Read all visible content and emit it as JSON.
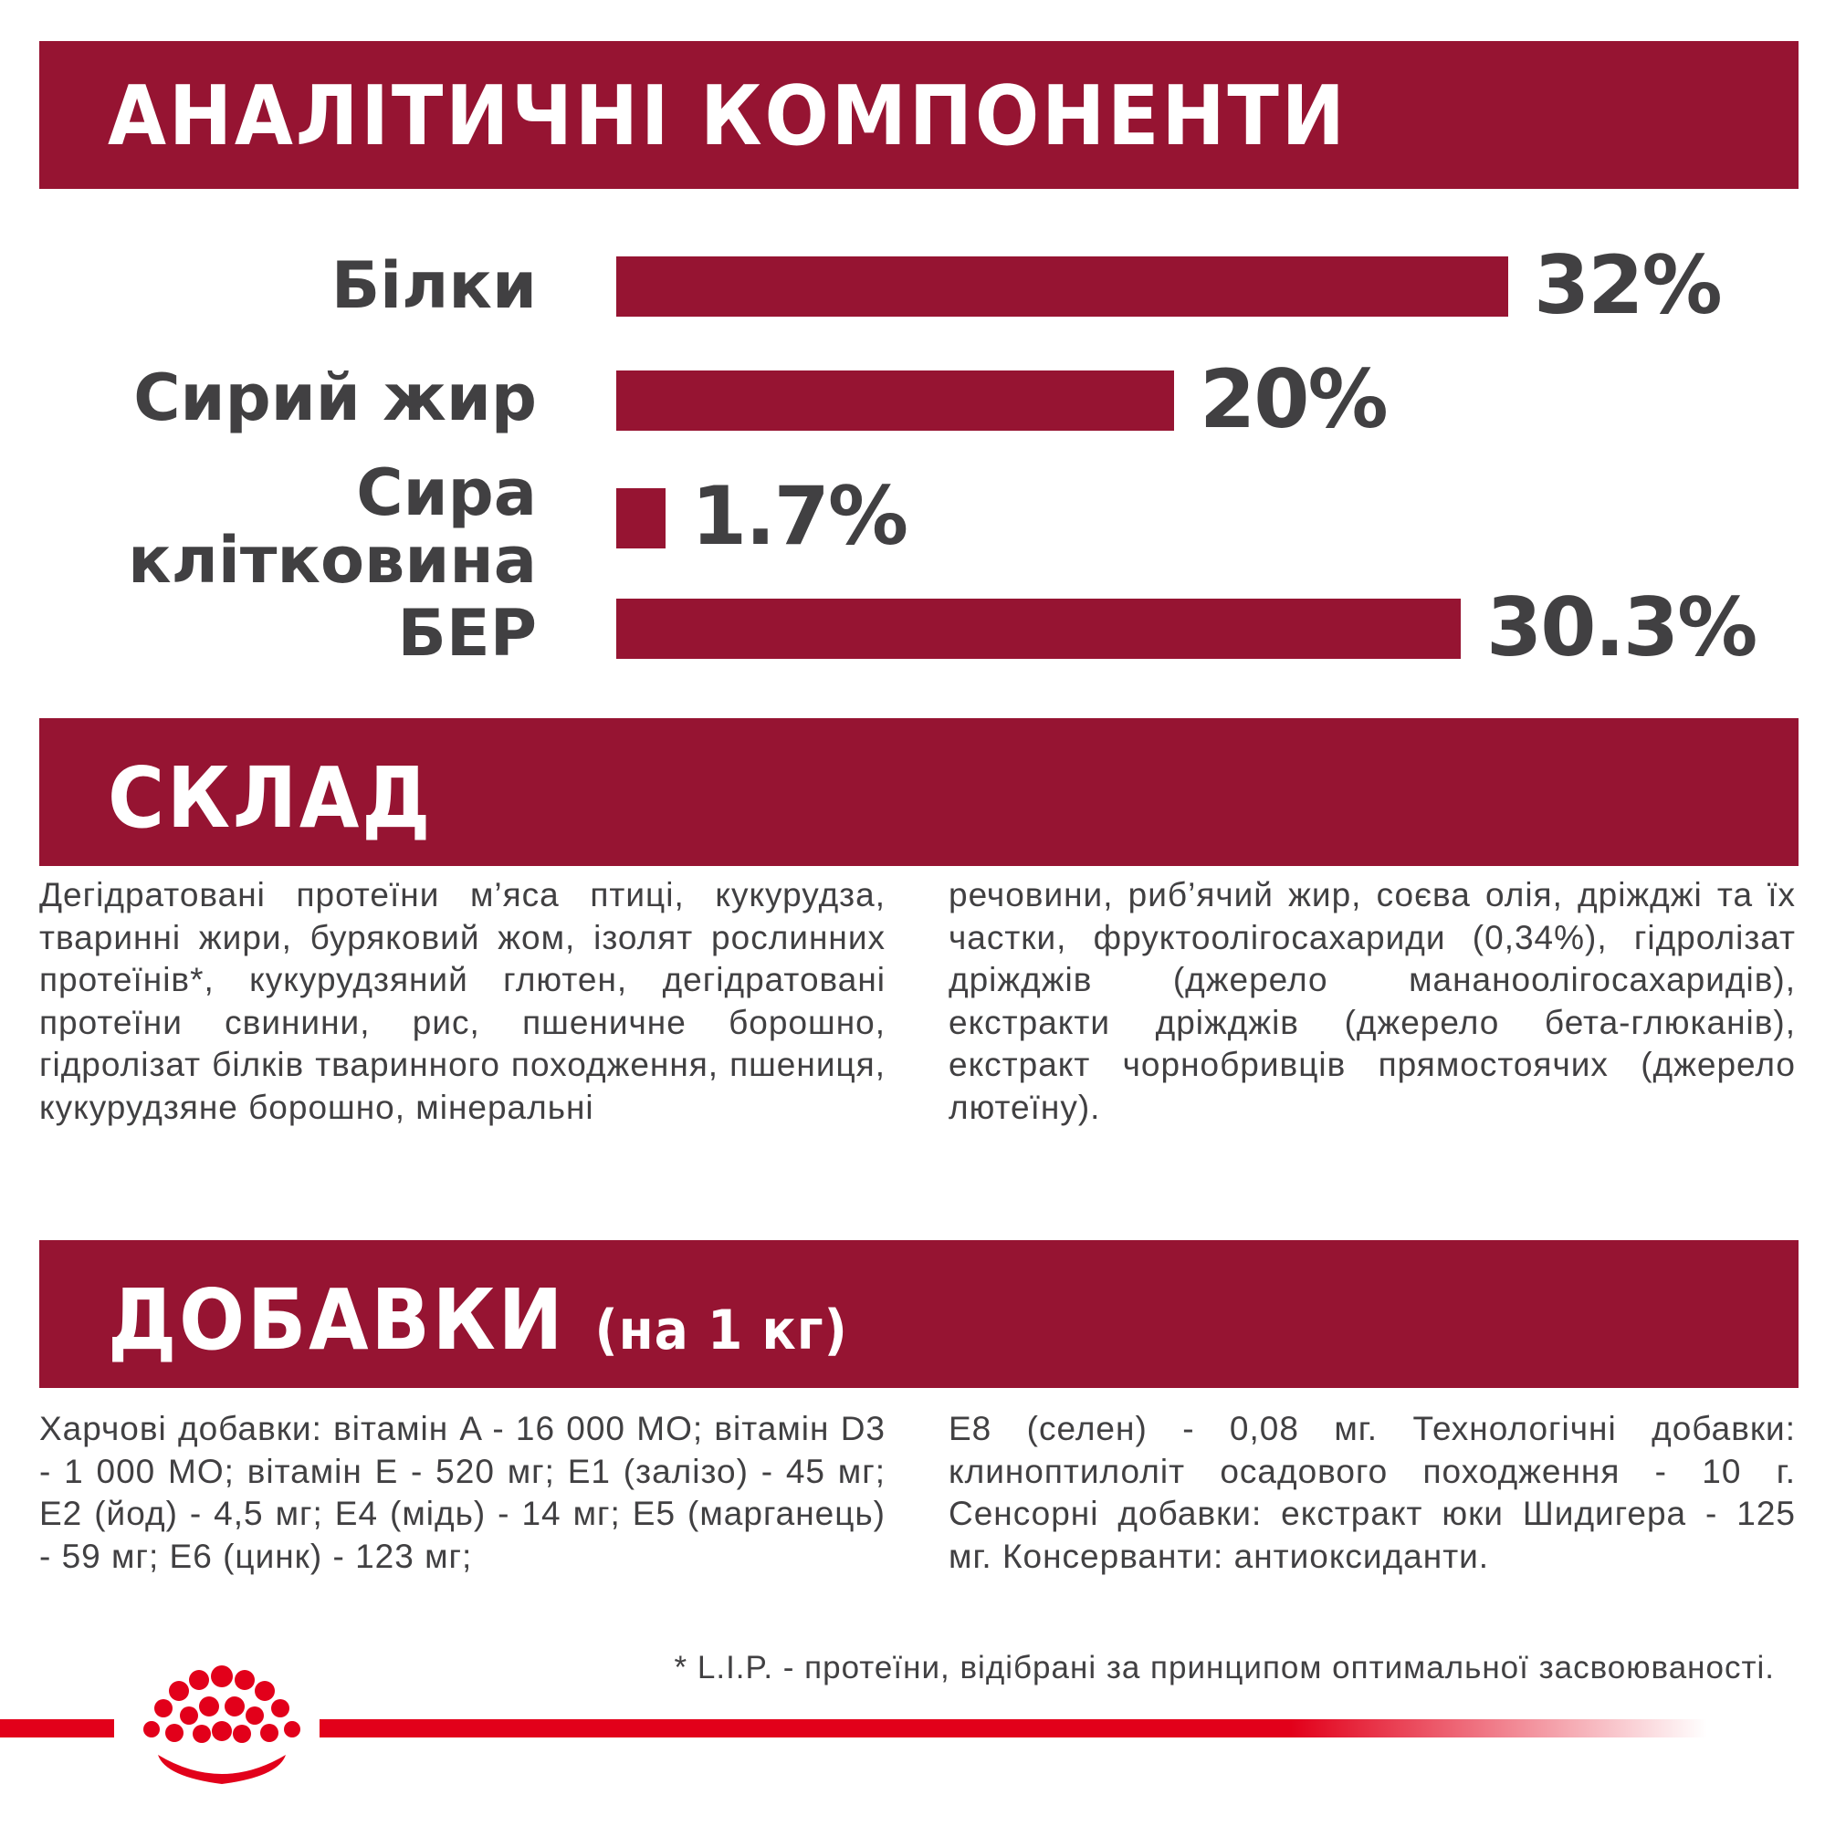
{
  "sections": {
    "analytics_title": "АНАЛІТИЧНІ КОМПОНЕНТИ",
    "composition_title": "СКЛАД",
    "additives_title": "ДОБАВКИ",
    "additives_subtitle": "(на 1 кг)"
  },
  "nutrients": [
    {
      "label": "Білки",
      "value_text": "32%",
      "percent": 32
    },
    {
      "label": "Сирий жир",
      "value_text": "20%",
      "percent": 20
    },
    {
      "label_line1": "Сира",
      "label_line2": "клітковина",
      "value_text": "1.7%",
      "percent": 1.7
    },
    {
      "label": "БЕР",
      "value_text": "30.3%",
      "percent": 30.3
    }
  ],
  "composition": {
    "col1": "Дегідратовані протеїни м’яса птиці, кукурудза, тваринні жири, буряковий жом, ізолят рослин­них протеїнів*, кукурудзяний глютен, дегідрато­вані протеїни свинини, рис, пшеничне борош­но, гідролізат білків тваринного походження, пшениця, кукурудзяне борошно, мінеральні",
    "col2": "речовини, риб’ячий жир, соєва олія, дріжджі та їх частки, фруктоолігосахариди (0,34%), гідролі­зат дріжджів (джерело мананоолігосахаридів), екстракти дріжджів (джерело бета-глюканів), екстракт чорнобривців прямостоячих (джерело лютеїну)."
  },
  "additives": {
    "col1": "Харчові добавки: вітамін A - 16 000 МО; вітамін D3 - 1 000 МО; вітамін E - 520 мг; E1 (залізо) - 45 мг; E2 (йод) - 4,5 мг; E4 (мідь) - 14 мг; E5 (марганець) - 59 мг; E6 (цинк) - 123 мг;",
    "col2": "E8 (селен) - 0,08 мг. Технологічні добавки: клиноптилоліт осадового походження - 10 г. Сенсорні добавки: екстракт юки Шидигера - 125 мг. Консерванти: антиоксиданти."
  },
  "footnote": "* L.I.P. - протеїни, відібрані за принципом оптимальної засвоюваності.",
  "colors": {
    "banner": "#961432",
    "bar": "#961432",
    "text": "#414042",
    "logo_red": "#e2001a"
  },
  "icons": {
    "logo": "royal-canin-crown-logo"
  }
}
